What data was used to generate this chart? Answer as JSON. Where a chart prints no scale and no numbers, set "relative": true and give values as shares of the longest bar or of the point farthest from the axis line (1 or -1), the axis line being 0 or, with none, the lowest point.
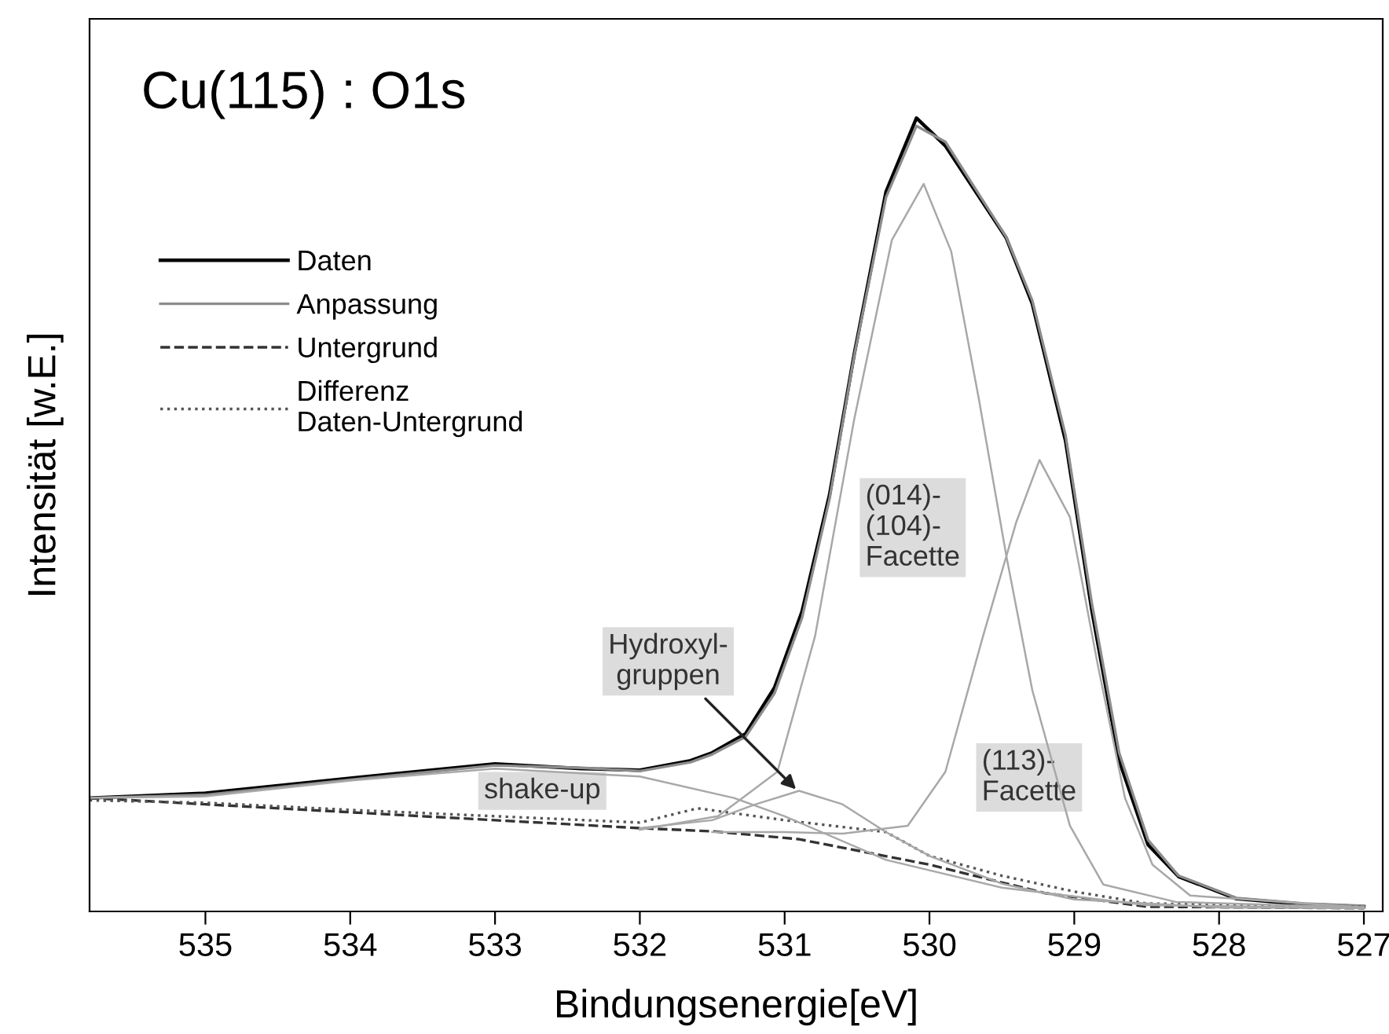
{
  "chart_data": {
    "type": "line",
    "title": "Cu(115) : O1s",
    "xlabel": "Bindungsenergie[eV]",
    "ylabel": "Intensität [w.E.]",
    "relative": true,
    "xlim": [
      535.8,
      526.87
    ],
    "xticks": [
      535,
      534,
      533,
      532,
      531,
      530,
      529,
      528,
      527
    ],
    "tick_labels": "x",
    "grid": false,
    "legend": "top left",
    "series": [
      {
        "name": "Daten",
        "color": "#000000",
        "line_style": "solid",
        "x": [
          535.8,
          535,
          534,
          533,
          532.4,
          532,
          531.65,
          531.5,
          531.27,
          531.07,
          530.88,
          530.69,
          530.52,
          530.3,
          530.09,
          529.89,
          529.47,
          529.29,
          529.06,
          528.88,
          528.69,
          528.49,
          528.28,
          527.88,
          527.41,
          527.0
        ],
        "values": [
          0.143,
          0.149,
          0.168,
          0.186,
          0.18,
          0.178,
          0.19,
          0.2,
          0.224,
          0.282,
          0.378,
          0.525,
          0.702,
          0.907,
          1,
          0.965,
          0.849,
          0.766,
          0.593,
          0.381,
          0.19,
          0.084,
          0.044,
          0.016,
          0.009,
          0.006
        ]
      },
      {
        "name": "Anpassung",
        "color": "#8c8c8c",
        "line_style": "solid",
        "x": [
          535.8,
          535,
          534,
          533,
          532.4,
          532,
          531.65,
          531.5,
          531.27,
          531.07,
          530.88,
          530.69,
          530.52,
          530.3,
          530.09,
          529.89,
          529.47,
          529.29,
          529.06,
          528.88,
          528.69,
          528.49,
          528.28,
          527.88,
          527.41,
          527.0
        ],
        "values": [
          0.143,
          0.147,
          0.166,
          0.184,
          0.181,
          0.177,
          0.188,
          0.198,
          0.22,
          0.275,
          0.37,
          0.52,
          0.7,
          0.9,
          0.99,
          0.97,
          0.85,
          0.77,
          0.6,
          0.39,
          0.2,
          0.09,
          0.045,
          0.017,
          0.01,
          0.007
        ]
      },
      {
        "name": "Untergrund",
        "color": "#333333",
        "line_style": "dashed",
        "x": [
          535.8,
          535,
          534,
          533,
          532,
          531.5,
          530.9,
          530.0,
          529.2,
          528.5,
          527.0
        ],
        "values": [
          0.143,
          0.135,
          0.125,
          0.115,
          0.105,
          0.101,
          0.091,
          0.059,
          0.023,
          0.006,
          0.004
        ]
      },
      {
        "name": "Differenz\nDaten-Untergrund",
        "color": "#555555",
        "line_style": "dotted",
        "x": [
          535.8,
          535,
          534,
          533,
          532,
          531.6,
          531,
          530.3,
          530,
          529.5,
          529,
          528.5,
          527
        ],
        "values": [
          0.14,
          0.137,
          0.128,
          0.12,
          0.112,
          0.13,
          0.115,
          0.1,
          0.07,
          0.045,
          0.025,
          0.01,
          0.006
        ]
      },
      {
        "color": "#a8a8a8",
        "line_style": "solid",
        "x": [
          535.8,
          535,
          534,
          533,
          532,
          531.35,
          531,
          530.3,
          529.5,
          528.5,
          527
        ],
        "values": [
          0.143,
          0.145,
          0.165,
          0.18,
          0.17,
          0.143,
          0.12,
          0.065,
          0.03,
          0.008,
          0.004
        ]
      },
      {
        "color": "#a8a8a8",
        "line_style": "solid",
        "x": [
          532,
          531.5,
          531.2,
          530.9,
          530.6,
          530.3,
          530,
          529.5,
          529,
          528,
          527
        ],
        "values": [
          0.105,
          0.115,
          0.135,
          0.152,
          0.135,
          0.1,
          0.07,
          0.035,
          0.015,
          0.005,
          0.004
        ]
      },
      {
        "color": "#a8a8a8",
        "line_style": "solid",
        "x": [
          532,
          531.46,
          531.05,
          530.79,
          530.52,
          530.26,
          530.04,
          529.85,
          529.66,
          529.47,
          529.29,
          529.03,
          528.8,
          528.3,
          527
        ],
        "values": [
          0.103,
          0.12,
          0.176,
          0.347,
          0.62,
          0.846,
          0.917,
          0.832,
          0.647,
          0.449,
          0.279,
          0.108,
          0.034,
          0.012,
          0.005
        ]
      },
      {
        "color": "#a8a8a8",
        "line_style": "solid",
        "x": [
          531.5,
          531,
          530.6,
          530.15,
          529.89,
          529.63,
          529.4,
          529.24,
          529.03,
          528.84,
          528.65,
          528.46,
          528.2,
          527
        ],
        "values": [
          0.1,
          0.1,
          0.098,
          0.108,
          0.176,
          0.347,
          0.491,
          0.569,
          0.497,
          0.313,
          0.143,
          0.059,
          0.02,
          0.005
        ]
      }
    ],
    "annotations": [
      "shake-up",
      "(014)-\n(104)-\nFacette",
      "(113)-\nFacette",
      {
        "text": "Hydroxyl-\ngruppen",
        "x": 530.9,
        "y": 0.15
      }
    ]
  }
}
